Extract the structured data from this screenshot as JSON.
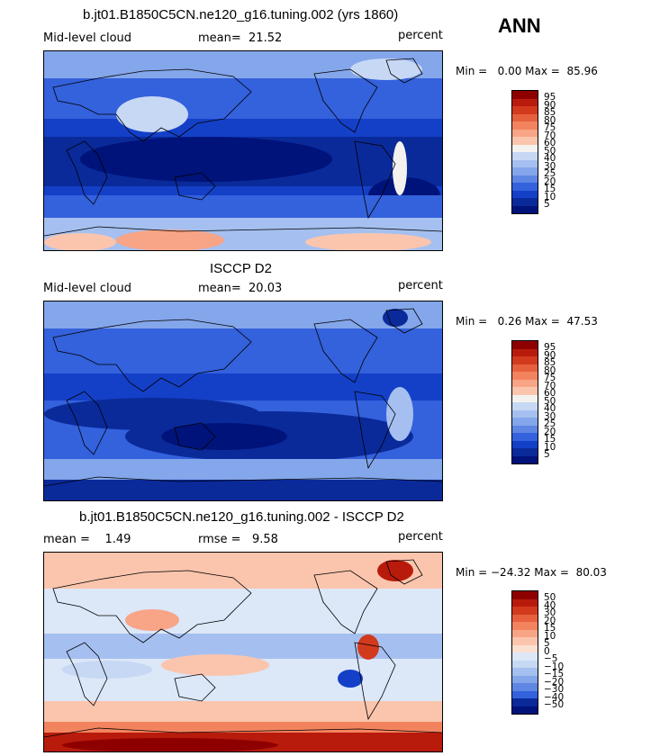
{
  "case": "ANN",
  "units": "percent",
  "panels": [
    {
      "title": "b.jt01.B1850C5CN.ne120_g16.tuning.002 (yrs 1860)",
      "field": "Mid-level cloud",
      "mean_label": "mean=",
      "mean": "21.52",
      "min_label": "Min =",
      "min": "0.00",
      "max_label": "Max =",
      "max": "85.96",
      "levels": [
        "95",
        "90",
        "85",
        "80",
        "75",
        "70",
        "60",
        "50",
        "40",
        "30",
        "25",
        "20",
        "15",
        "10",
        "5"
      ]
    },
    {
      "title": "ISCCP D2",
      "field": "Mid-level cloud",
      "mean_label": "mean=",
      "mean": "20.03",
      "min_label": "Min =",
      "min": "0.26",
      "max_label": "Max =",
      "max": "47.53",
      "levels": [
        "95",
        "90",
        "85",
        "80",
        "75",
        "70",
        "60",
        "50",
        "40",
        "30",
        "25",
        "20",
        "15",
        "10",
        "5"
      ]
    },
    {
      "title": "b.jt01.B1850C5CN.ne120_g16.tuning.002 - ISCCP D2",
      "field": "",
      "mean_label": "mean =",
      "mean": "1.49",
      "rmse_label": "rmse =",
      "rmse": "9.58",
      "min_label": "Min =",
      "min": "−24.32",
      "max_label": "Max =",
      "max": "80.03",
      "levels": [
        "50",
        "40",
        "30",
        "20",
        "15",
        "10",
        "5",
        "0",
        "−5",
        "−10",
        "−15",
        "−20",
        "−30",
        "−40",
        "−50"
      ]
    }
  ],
  "colors": {
    "abs": [
      "#8e0000",
      "#b81b0c",
      "#d23a1e",
      "#e6603e",
      "#f3835f",
      "#f8a487",
      "#fbc5ad",
      "#f4f2ee",
      "#c7d8f5",
      "#a5c0f0",
      "#84a6ea",
      "#5e86e2",
      "#3461dc",
      "#1440c8",
      "#0a2a9a",
      "#00137a"
    ],
    "diff": [
      "#8e0000",
      "#b81b0c",
      "#d23a1e",
      "#e6603e",
      "#f3835f",
      "#f8a487",
      "#fbc5ad",
      "#fbe0d2",
      "#dce7f8",
      "#c7d8f5",
      "#a5c0f0",
      "#84a6ea",
      "#5e86e2",
      "#3461dc",
      "#0a2a9a",
      "#00137a"
    ]
  },
  "chart_data": [
    {
      "type": "heatmap",
      "title": "b.jt01.B1850C5CN.ne120_g16.tuning.002 (yrs 1860)",
      "variable": "Mid-level cloud",
      "units": "percent",
      "mean": 21.52,
      "min": 0.0,
      "max": 85.96,
      "contour_levels": [
        5,
        10,
        15,
        20,
        25,
        30,
        40,
        50,
        60,
        70,
        75,
        80,
        85,
        90,
        95
      ]
    },
    {
      "type": "heatmap",
      "title": "ISCCP D2",
      "variable": "Mid-level cloud",
      "units": "percent",
      "mean": 20.03,
      "min": 0.26,
      "max": 47.53,
      "contour_levels": [
        5,
        10,
        15,
        20,
        25,
        30,
        40,
        50,
        60,
        70,
        75,
        80,
        85,
        90,
        95
      ]
    },
    {
      "type": "heatmap",
      "title": "b.jt01.B1850C5CN.ne120_g16.tuning.002 - ISCCP D2",
      "units": "percent",
      "mean": 1.49,
      "rmse": 9.58,
      "min": -24.32,
      "max": 80.03,
      "contour_levels": [
        -50,
        -40,
        -30,
        -20,
        -15,
        -10,
        -5,
        0,
        5,
        10,
        15,
        20,
        30,
        40,
        50
      ]
    }
  ]
}
